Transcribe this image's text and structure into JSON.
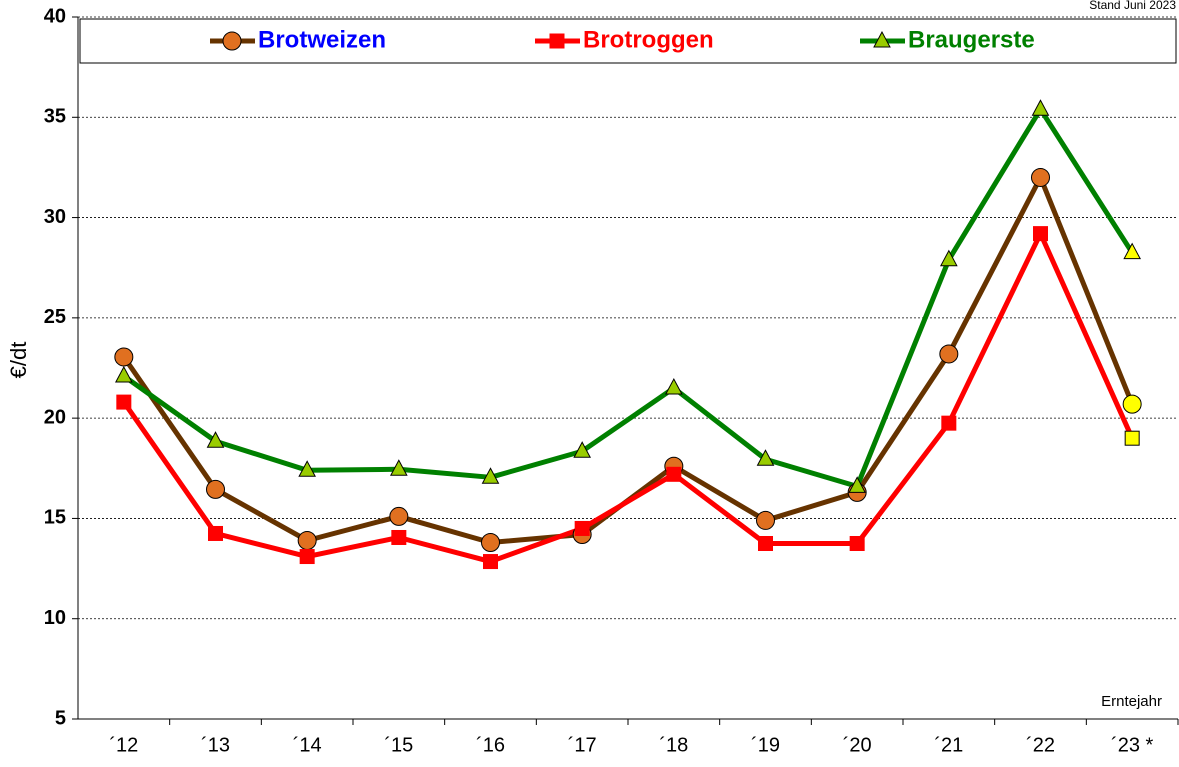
{
  "chart_data": {
    "type": "line",
    "note": "Stand Juni 2023",
    "x_label": "Erntejahr",
    "y_label": "€/dt",
    "categories": [
      "´12",
      "´13",
      "´14",
      "´15",
      "´16",
      "´17",
      "´18",
      "´19",
      "´20",
      "´21",
      "´22",
      "´23 *"
    ],
    "series": [
      {
        "name": "Brotweizen",
        "color": "#663300",
        "marker": "circle",
        "marker_color": "#e07020",
        "label_color": "#0000ff",
        "values": [
          23.05,
          16.45,
          13.9,
          15.1,
          13.8,
          14.2,
          17.6,
          14.9,
          16.3,
          23.2,
          32.0,
          20.7
        ]
      },
      {
        "name": "Brotroggen",
        "color": "#ff0000",
        "marker": "square",
        "marker_color": "#ff0000",
        "label_color": "#ff0000",
        "values": [
          20.8,
          14.25,
          13.1,
          14.05,
          12.85,
          14.5,
          17.2,
          13.75,
          13.75,
          19.75,
          29.2,
          19.0
        ]
      },
      {
        "name": "Braugerste",
        "color": "#008000",
        "marker": "triangle",
        "marker_color": "#99cc00",
        "label_color": "#008000",
        "values": [
          22.1,
          18.85,
          17.4,
          17.45,
          17.05,
          18.35,
          21.5,
          17.95,
          16.6,
          27.9,
          35.4,
          28.25
        ]
      }
    ],
    "last_marker_color": "#ffff00",
    "ylim": [
      5,
      40
    ],
    "yticks": [
      5,
      10,
      15,
      20,
      25,
      30,
      35,
      40
    ],
    "grid": true
  }
}
